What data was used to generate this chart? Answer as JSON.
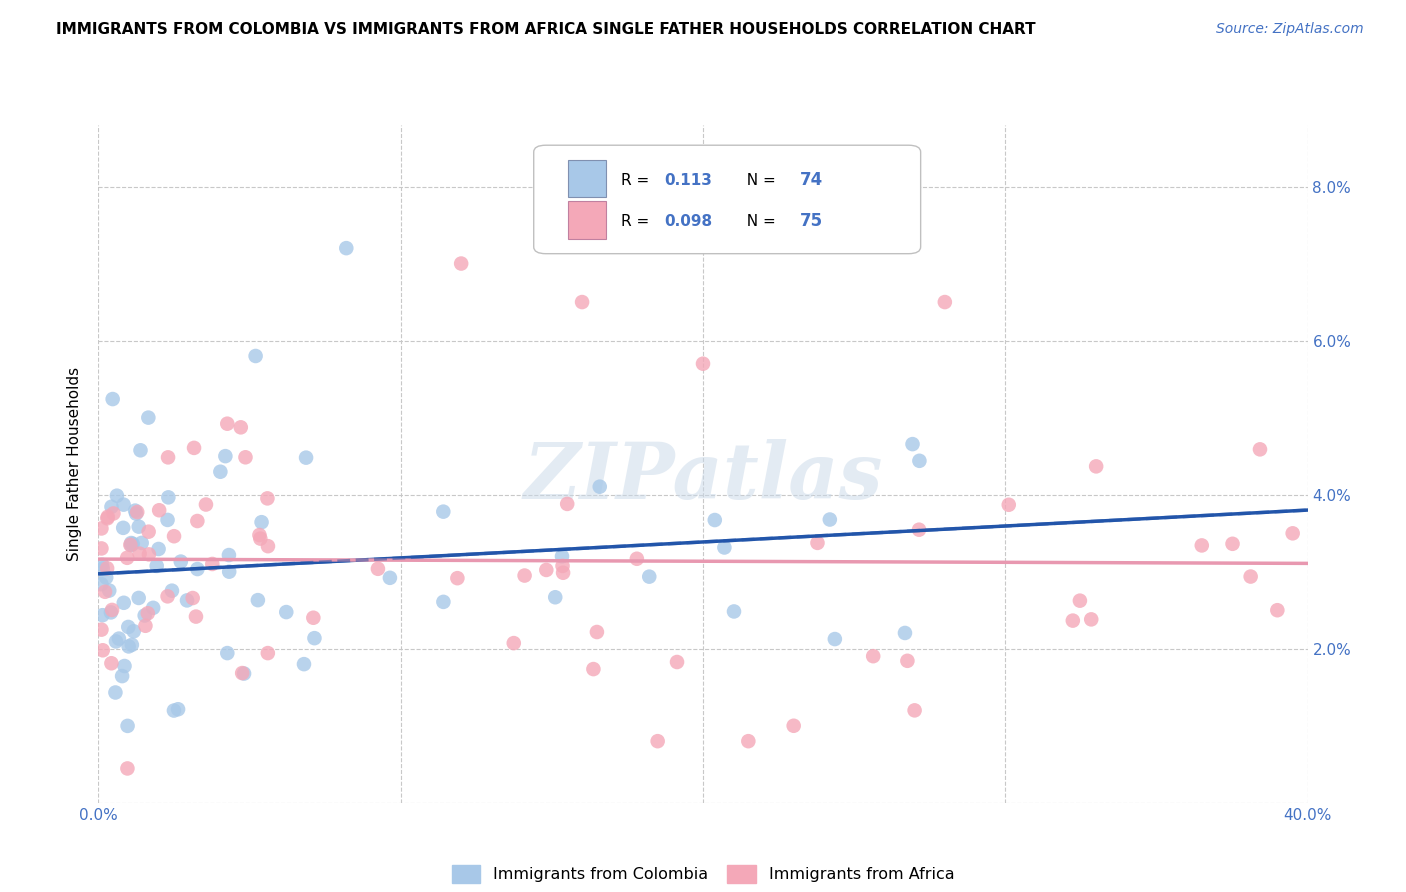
{
  "title": "IMMIGRANTS FROM COLOMBIA VS IMMIGRANTS FROM AFRICA SINGLE FATHER HOUSEHOLDS CORRELATION CHART",
  "source": "Source: ZipAtlas.com",
  "ylabel": "Single Father Households",
  "xlim": [
    0.0,
    0.4
  ],
  "ylim": [
    0.0,
    0.088
  ],
  "xticks": [
    0.0,
    0.1,
    0.2,
    0.3,
    0.4
  ],
  "xticklabels": [
    "0.0%",
    "",
    "",
    "",
    "40.0%"
  ],
  "yticks": [
    0.0,
    0.02,
    0.04,
    0.06,
    0.08
  ],
  "yticklabels": [
    "",
    "2.0%",
    "4.0%",
    "6.0%",
    "8.0%"
  ],
  "colombia_color": "#a8c8e8",
  "africa_color": "#f4a8b8",
  "colombia_line_color": "#2255aa",
  "africa_line_color": "#e898b0",
  "R_colombia": 0.113,
  "N_colombia": 74,
  "R_africa": 0.098,
  "N_africa": 75,
  "background_color": "#ffffff",
  "grid_color": "#c8c8c8",
  "watermark_text": "ZIPatlas",
  "legend_label_colombia": "Immigrants from Colombia",
  "legend_label_africa": "Immigrants from Africa"
}
